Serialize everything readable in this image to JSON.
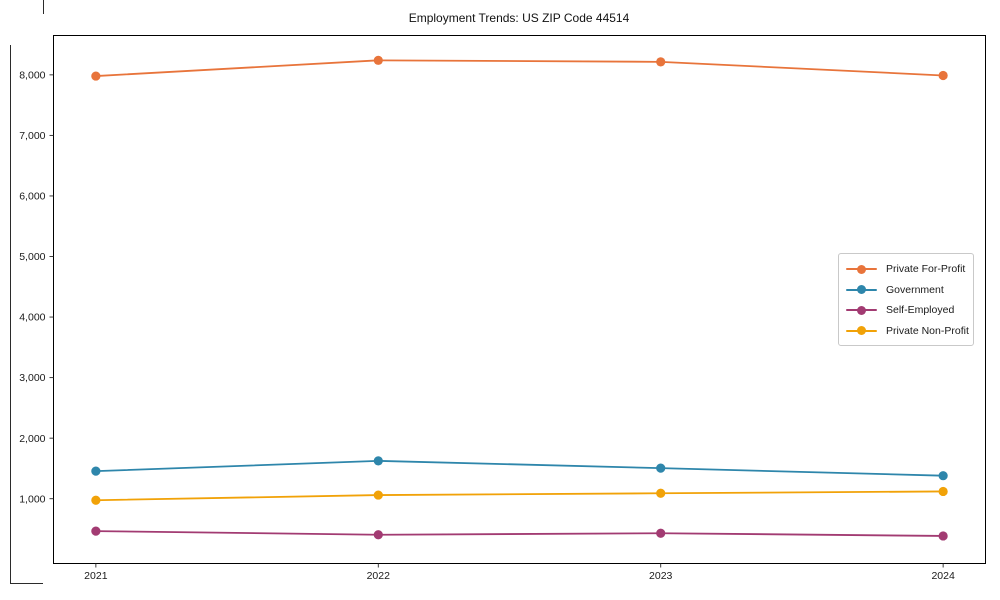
{
  "figure": {
    "title": "Employment Trends: US ZIP Code 44514"
  },
  "chart_data": {
    "type": "line",
    "title": "Employment Trends: US ZIP Code 44514",
    "xlabel": "",
    "ylabel": "",
    "x": [
      2021,
      2022,
      2023,
      2024
    ],
    "x_tick_labels": [
      "2021",
      "2022",
      "2023",
      "2024"
    ],
    "y_ticks": [
      1000,
      2000,
      3000,
      4000,
      5000,
      6000,
      7000,
      8000
    ],
    "y_tick_labels": [
      "1,000",
      "2,000",
      "3,000",
      "4,000",
      "5,000",
      "6,000",
      "7,000",
      "8,000"
    ],
    "xlim": [
      2020.85,
      2024.15
    ],
    "ylim": [
      -70,
      8650
    ],
    "grid": false,
    "legend_position": "center right",
    "series": [
      {
        "name": "Private For-Profit",
        "color": "#E8743B",
        "values": [
          7980,
          8240,
          8215,
          7990
        ]
      },
      {
        "name": "Government",
        "color": "#2E86AB",
        "values": [
          1455,
          1625,
          1505,
          1380
        ]
      },
      {
        "name": "Self-Employed",
        "color": "#A23B72",
        "values": [
          465,
          405,
          430,
          385
        ]
      },
      {
        "name": "Private Non-Profit",
        "color": "#F1A208",
        "values": [
          975,
          1060,
          1090,
          1120
        ]
      }
    ],
    "style": {
      "spine_color": "#000000",
      "tick_color": "#262626",
      "line_width": 1.8,
      "marker_radius": 4.6
    }
  }
}
